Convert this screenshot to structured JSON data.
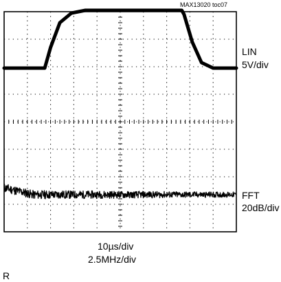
{
  "header": {
    "title": "",
    "doc_ref": "MAX13020 toc07"
  },
  "traces": {
    "lin": {
      "name": "LIN",
      "scale": "5V/div"
    },
    "fft": {
      "name": "FFT",
      "scale": "20dB/div"
    }
  },
  "footer": {
    "time_scale": "10µs/div",
    "freq_scale": "2.5MHz/div",
    "load": "R"
  },
  "chart_data": {
    "type": "line",
    "grid": true,
    "divisions": {
      "x": 10,
      "y": 8
    },
    "series": [
      {
        "name": "LIN",
        "x_div": [
          0,
          1.75,
          2.0,
          2.4,
          2.9,
          3.5,
          7.65,
          7.75,
          8.1,
          8.5,
          9.0,
          10
        ],
        "y_div": [
          5.95,
          5.95,
          6.7,
          7.6,
          7.95,
          8.05,
          8.05,
          7.9,
          6.9,
          6.15,
          5.95,
          5.95
        ]
      },
      {
        "name": "FFT",
        "level_div": 1.35,
        "early_level_div": 1.6,
        "noise_div": 0.12
      }
    ],
    "colors": {
      "trace": "#000000",
      "grid": "#000000",
      "background": "#ffffff"
    }
  }
}
